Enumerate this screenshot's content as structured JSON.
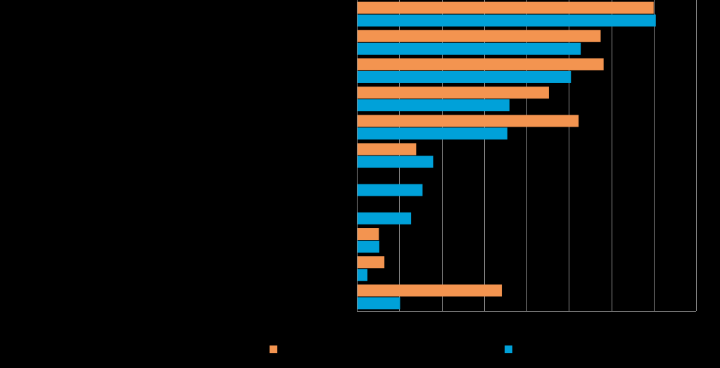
{
  "chart_data": {
    "type": "bar",
    "orientation": "horizontal",
    "title": "",
    "xlabel": "",
    "ylabel": "",
    "grid": true,
    "legend_position": "bottom",
    "xlim": [
      0,
      80
    ],
    "category_count": 11,
    "series": [
      {
        "name": "",
        "color": "#F39450",
        "values": [
          70,
          57.5,
          58.2,
          45.3,
          52.3,
          14,
          0,
          0,
          5.2,
          6.5,
          34.2
        ]
      },
      {
        "name": "",
        "color": "#00A1D9",
        "values": [
          70.5,
          52.8,
          50.5,
          36,
          35.5,
          18,
          15.5,
          12.8,
          5.3,
          2.5,
          10.2
        ]
      }
    ]
  }
}
